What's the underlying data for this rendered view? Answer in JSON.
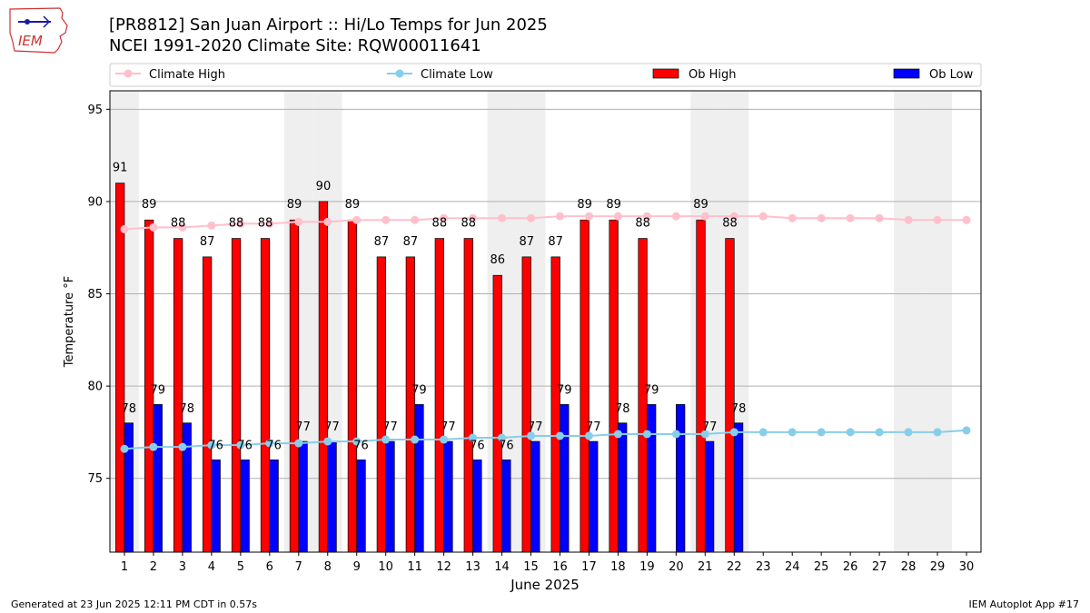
{
  "header": {
    "title_line1": "[PR8812] San Juan Airport :: Hi/Lo Temps for Jun 2025",
    "title_line2": "NCEI 1991-2020 Climate Site: RQW00011641",
    "logo_text": "IEM"
  },
  "footer": {
    "left": "Generated at 23 Jun 2025 12:11 PM CDT in 0.57s",
    "right": "IEM Autoplot App #17"
  },
  "colors": {
    "ob_high": "#ff0000",
    "ob_low": "#0000ff",
    "climate_high": "#ffc0cb",
    "climate_low": "#87ceeb",
    "weekend_band": "#efefef",
    "grid": "#b0b0b0"
  },
  "chart_data": {
    "type": "bar",
    "title": "[PR8812] San Juan Airport :: Hi/Lo Temps for Jun 2025",
    "subtitle": "NCEI 1991-2020 Climate Site: RQW00011641",
    "xlabel": "June 2025",
    "ylabel": "Temperature °F",
    "ylim": [
      71,
      96
    ],
    "xlim": [
      0.5,
      30.5
    ],
    "yticks": [
      75,
      80,
      85,
      90,
      95
    ],
    "x": [
      1,
      2,
      3,
      4,
      5,
      6,
      7,
      8,
      9,
      10,
      11,
      12,
      13,
      14,
      15,
      16,
      17,
      18,
      19,
      20,
      21,
      22,
      23,
      24,
      25,
      26,
      27,
      28,
      29,
      30
    ],
    "grid": "y",
    "legend_position": "top",
    "weekend_days": [
      1,
      7,
      8,
      14,
      15,
      21,
      22,
      28,
      29
    ],
    "series": [
      {
        "name": "Climate High",
        "kind": "line",
        "values": [
          88.5,
          88.6,
          88.6,
          88.7,
          88.8,
          88.8,
          88.9,
          88.9,
          89.0,
          89.0,
          89.0,
          89.1,
          89.1,
          89.1,
          89.1,
          89.2,
          89.2,
          89.2,
          89.2,
          89.2,
          89.2,
          89.2,
          89.2,
          89.1,
          89.1,
          89.1,
          89.1,
          89.0,
          89.0,
          89.0
        ]
      },
      {
        "name": "Climate Low",
        "kind": "line",
        "values": [
          76.6,
          76.7,
          76.7,
          76.8,
          76.8,
          76.9,
          76.9,
          77.0,
          77.0,
          77.1,
          77.1,
          77.1,
          77.2,
          77.2,
          77.3,
          77.3,
          77.3,
          77.4,
          77.4,
          77.4,
          77.4,
          77.5,
          77.5,
          77.5,
          77.5,
          77.5,
          77.5,
          77.5,
          77.5,
          77.6
        ]
      },
      {
        "name": "Ob High",
        "kind": "bar",
        "values": [
          91,
          89,
          88,
          87,
          88,
          88,
          89,
          90,
          89,
          87,
          87,
          88,
          88,
          86,
          87,
          87,
          89,
          89,
          88,
          null,
          89,
          88,
          null,
          null,
          null,
          null,
          null,
          null,
          null,
          null
        ],
        "labels": [
          "91",
          "89",
          "88",
          "87",
          "88",
          "88",
          "89",
          "90",
          "89",
          "87",
          "87",
          "88",
          "88",
          "86",
          "87",
          "87",
          "89",
          "89",
          "88",
          "",
          "89",
          "88",
          "",
          "",
          "",
          "",
          "",
          "",
          "",
          ""
        ]
      },
      {
        "name": "Ob Low",
        "kind": "bar",
        "values": [
          78,
          79,
          78,
          76,
          76,
          76,
          77,
          77,
          76,
          77,
          79,
          77,
          76,
          76,
          77,
          79,
          77,
          78,
          79,
          79,
          77,
          78,
          null,
          null,
          null,
          null,
          null,
          null,
          null,
          null
        ],
        "labels": [
          "78",
          "79",
          "78",
          "76",
          "76",
          "76",
          "77",
          "77",
          "76",
          "77",
          "79",
          "77",
          "76",
          "76",
          "77",
          "79",
          "77",
          "78",
          "79",
          "",
          "77",
          "78",
          "",
          "",
          "",
          "",
          "",
          "",
          "",
          ""
        ]
      }
    ]
  }
}
